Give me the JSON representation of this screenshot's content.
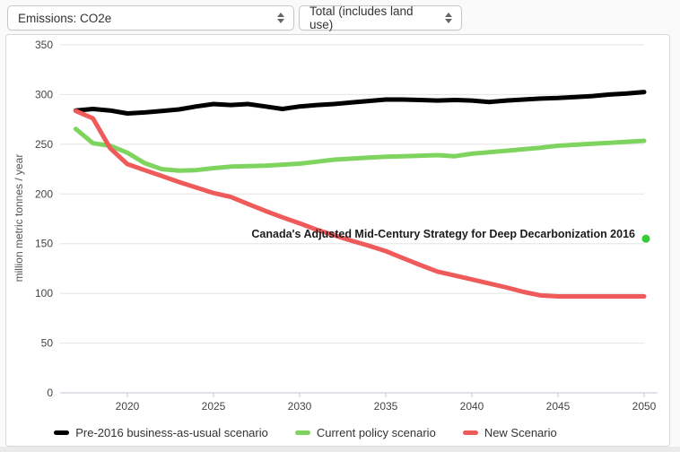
{
  "toolbar": {
    "metric_select": {
      "value": "Emissions: CO2e"
    },
    "breakdown_select": {
      "value": "Total (includes land use)"
    }
  },
  "colors": {
    "page_background": "#fafafa",
    "panel_background": "#ffffff",
    "panel_border": "#d8d8d8",
    "gridline": "#e4e4e4",
    "axis_line": "#c2c9d6",
    "tick_label": "#444444",
    "annotation_text": "#1c1c1c",
    "annotation_dot": "#33cc33"
  },
  "chart_data": {
    "type": "line",
    "title": "",
    "xlabel": "",
    "ylabel": "million metric tonnes / year",
    "ylim": [
      0,
      350
    ],
    "yticks": [
      0,
      50,
      100,
      150,
      200,
      250,
      300,
      350
    ],
    "xticks": [
      2020,
      2025,
      2030,
      2035,
      2040,
      2045,
      2050
    ],
    "grid": "horizontal only",
    "legend_position": "bottom center",
    "x": [
      2017,
      2018,
      2019,
      2020,
      2021,
      2022,
      2023,
      2024,
      2025,
      2026,
      2027,
      2028,
      2029,
      2030,
      2031,
      2032,
      2033,
      2034,
      2035,
      2036,
      2037,
      2038,
      2039,
      2040,
      2041,
      2042,
      2043,
      2044,
      2045,
      2046,
      2047,
      2048,
      2049,
      2050
    ],
    "series": [
      {
        "name": "Pre-2016 business-as-usual scenario",
        "color": "#000000",
        "values": [
          284,
          285.5,
          284,
          281,
          282,
          283.5,
          285,
          288,
          290.5,
          289.5,
          290.5,
          288,
          285.5,
          288,
          289.5,
          290.5,
          292,
          293.5,
          295,
          295,
          294.5,
          294,
          294.5,
          294,
          292.5,
          294,
          295,
          296,
          296.5,
          297.5,
          298.5,
          300,
          301,
          302.5
        ]
      },
      {
        "name": "Current policy scenario",
        "color": "#7ed45e",
        "values": [
          265.5,
          251,
          248.5,
          241.5,
          231,
          225,
          223.5,
          224,
          226,
          227.5,
          228,
          228.5,
          229.5,
          230.5,
          232.5,
          234.5,
          235.5,
          236.5,
          237.5,
          238,
          238.5,
          239,
          238,
          240.5,
          242,
          243.5,
          245,
          246.5,
          248.5,
          249.5,
          250.5,
          251.5,
          252.5,
          253.5
        ]
      },
      {
        "name": "New Scenario",
        "color": "#ef5a5a",
        "values": [
          283.5,
          276,
          246,
          230,
          224,
          218,
          212,
          206.5,
          201,
          197,
          190,
          183,
          176.5,
          170.5,
          164,
          158.5,
          153,
          148,
          142.5,
          135.5,
          128.5,
          122,
          118,
          114,
          110,
          106,
          101.5,
          98,
          97,
          97,
          97,
          97,
          97,
          97
        ]
      }
    ],
    "annotation": {
      "text": "Canada's Adjusted Mid-Century Strategy for Deep Decarbonization 2016",
      "x": 2050,
      "y": 155,
      "marker": "dot",
      "marker_color": "#33cc33"
    }
  }
}
